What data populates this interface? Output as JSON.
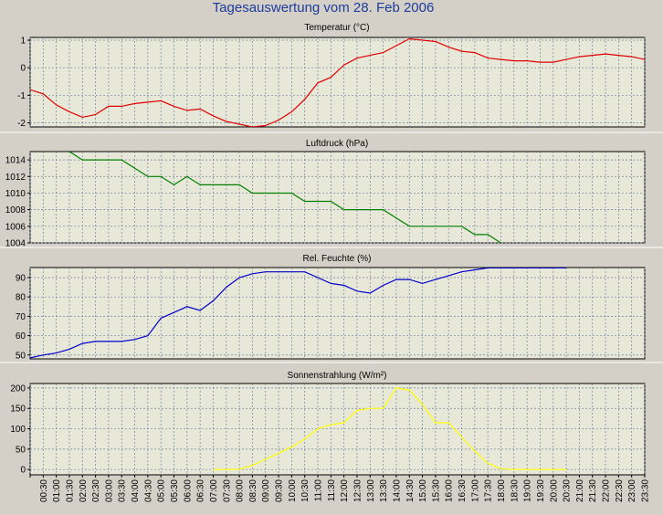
{
  "title": "Tagesauswertung vom 28. Feb 2006",
  "categories": [
    null,
    "00:30",
    "01:00",
    "01:30",
    "02:00",
    "02:30",
    "03:00",
    "03:30",
    "04:00",
    "04:30",
    "05:00",
    "05:30",
    "06:00",
    "06:30",
    "07:00",
    "07:30",
    "08:00",
    "08:30",
    "09:00",
    "09:30",
    "10:00",
    "10:30",
    "11:00",
    "11:30",
    "12:00",
    "12:30",
    "13:00",
    "13:30",
    "14:00",
    "14:30",
    "15:00",
    "15:30",
    "16:00",
    "16:30",
    "17:00",
    "17:30",
    "18:00",
    "18:30",
    "19:00",
    "19:30",
    "20:00",
    "20:30",
    "21:00",
    "21:30",
    "22:00",
    "22:30",
    "23:00",
    "23:30"
  ],
  "chart_data": [
    {
      "type": "line",
      "title": "Temperatur (°C)",
      "color": "#e00000",
      "ylim": [
        -2.15,
        1.1
      ],
      "yticks": [
        -2,
        -1,
        0,
        1
      ],
      "grid": true,
      "values": [
        -0.8,
        -0.95,
        -1.35,
        -1.6,
        -1.8,
        -1.7,
        -1.4,
        -1.4,
        -1.3,
        -1.25,
        -1.2,
        -1.4,
        -1.55,
        -1.5,
        -1.75,
        -1.95,
        -2.05,
        -2.15,
        -2.1,
        -1.9,
        -1.6,
        -1.15,
        -0.55,
        -0.35,
        0.1,
        0.35,
        0.45,
        0.55,
        0.8,
        1.05,
        1.0,
        0.95,
        0.75,
        0.6,
        0.55,
        0.35,
        0.3,
        0.25,
        0.25,
        0.2,
        0.2,
        0.3,
        0.4,
        0.45,
        0.5,
        0.45,
        0.4,
        0.3
      ]
    },
    {
      "type": "line",
      "title": "Luftdruck (hPa)",
      "color": "#008000",
      "ylim": [
        1004,
        1015
      ],
      "yticks": [
        1004,
        1006,
        1008,
        1010,
        1012,
        1014
      ],
      "grid": true,
      "values": [
        null,
        null,
        null,
        1015,
        1014,
        1014,
        1014,
        1014,
        1013,
        1012,
        1012,
        1011,
        1012,
        1011,
        1011,
        1011,
        1011,
        1010,
        1010,
        1010,
        1010,
        1009,
        1009,
        1009,
        1008,
        1008,
        1008,
        1008,
        1007,
        1006,
        1006,
        1006,
        1006,
        1006,
        1005,
        1005,
        1004,
        null,
        null,
        null,
        null,
        null,
        null,
        null,
        null,
        null,
        null,
        null
      ]
    },
    {
      "type": "line",
      "title": "Rel. Feuchte (%)",
      "color": "#0000cc",
      "ylim": [
        48,
        95.2
      ],
      "yticks": [
        50,
        60,
        70,
        80,
        90
      ],
      "grid": true,
      "values": [
        48.5,
        50,
        51,
        53,
        56,
        57,
        57,
        57,
        58,
        60,
        69,
        72,
        75,
        73,
        78,
        85,
        90,
        92,
        93,
        93,
        93,
        93,
        90,
        87,
        86,
        83,
        82,
        86,
        89,
        89,
        87,
        89,
        91,
        93,
        94,
        95,
        95,
        95,
        95,
        95,
        95,
        95,
        null,
        null,
        null,
        null,
        null,
        null
      ]
    },
    {
      "type": "line",
      "title": "Sonnenstrahlung (W/m²)",
      "color": "#ffff00",
      "ylim": [
        -13,
        211
      ],
      "yticks": [
        0,
        50,
        100,
        150,
        200
      ],
      "grid": true,
      "values": [
        null,
        null,
        null,
        null,
        null,
        null,
        null,
        null,
        null,
        null,
        null,
        null,
        null,
        null,
        0,
        0,
        1,
        10,
        25,
        40,
        55,
        75,
        100,
        110,
        115,
        145,
        150,
        150,
        200,
        195,
        160,
        115,
        115,
        80,
        45,
        15,
        2,
        0,
        0,
        0,
        0,
        0,
        null,
        null,
        null,
        null,
        null,
        null
      ]
    }
  ]
}
